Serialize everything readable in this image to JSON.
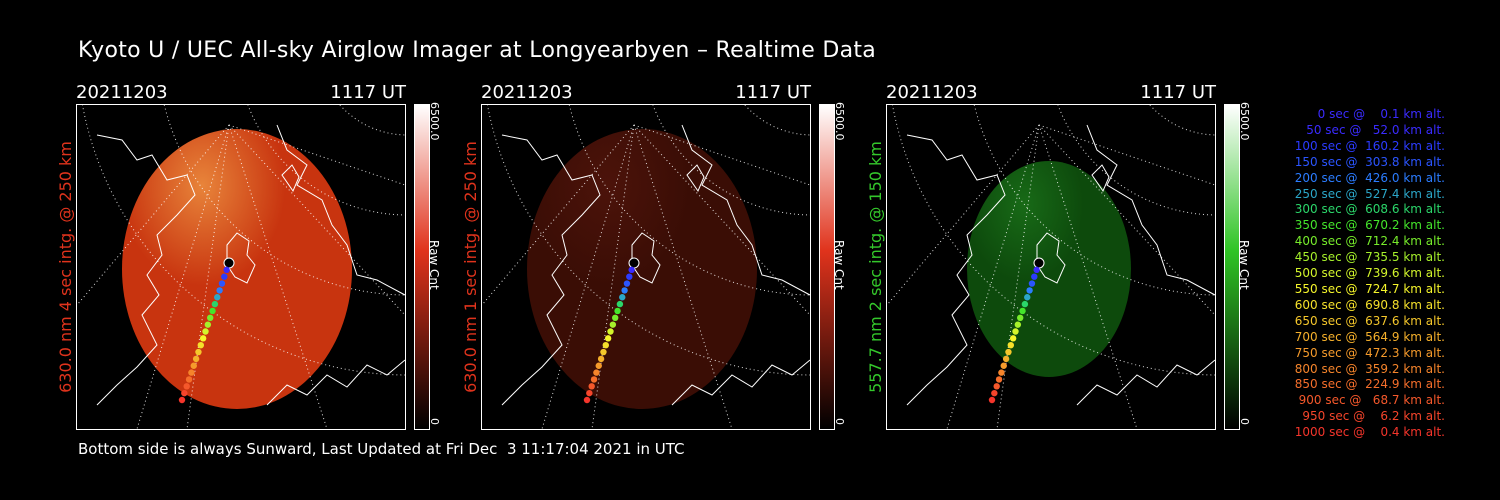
{
  "title": "Kyoto U / UEC All-sky Airglow Imager at Longyearbyen – Realtime Data",
  "footer": "Bottom side is always Sunward, Last Updated at Fri Dec  3 11:17:04 2021 in UTC",
  "panels": [
    {
      "date": "20211203",
      "time": "1117 UT",
      "ylabel": "630.0 nm 4 sec intg. @ 250 km",
      "label_color": "#e0331c",
      "cbar_max": "6500.0",
      "cbar_min": "0",
      "cbar_unit": "Raw Cnt",
      "image_color": "#c8340f",
      "brightness": "bright"
    },
    {
      "date": "20211203",
      "time": "1117 UT",
      "ylabel": "630.0 nm 1 sec intg. @ 250 km",
      "label_color": "#e0331c",
      "cbar_max": "6500.0",
      "cbar_min": "0",
      "cbar_unit": "Raw Cnt",
      "image_color": "#3a0d05",
      "brightness": "dim"
    },
    {
      "date": "20211203",
      "time": "1117 UT",
      "ylabel": "557.7 nm 2 sec intg. @ 150 km",
      "label_color": "#34c82b",
      "cbar_max": "6500.0",
      "cbar_min": "0",
      "cbar_unit": "Raw Cnt",
      "image_color": "#0d4a0c",
      "brightness": "dim"
    }
  ],
  "legend": [
    {
      "text": "   0 sec @    0.1 km alt.",
      "color": "#3a2bff"
    },
    {
      "text": "  50 sec @   52.0 km alt.",
      "color": "#3a2bff"
    },
    {
      "text": " 100 sec @  160.2 km alt.",
      "color": "#2b3bff"
    },
    {
      "text": " 150 sec @  303.8 km alt.",
      "color": "#2b55ff"
    },
    {
      "text": " 200 sec @  426.0 km alt.",
      "color": "#2b7cff"
    },
    {
      "text": " 250 sec @  527.4 km alt.",
      "color": "#2ba6c8"
    },
    {
      "text": " 300 sec @  608.6 km alt.",
      "color": "#2bd66a"
    },
    {
      "text": " 350 sec @  670.2 km alt.",
      "color": "#44e52b"
    },
    {
      "text": " 400 sec @  712.4 km alt.",
      "color": "#77ec2b"
    },
    {
      "text": " 450 sec @  735.5 km alt.",
      "color": "#a6f02b"
    },
    {
      "text": " 500 sec @  739.6 km alt.",
      "color": "#d3f52b"
    },
    {
      "text": " 550 sec @  724.7 km alt.",
      "color": "#f5f52b"
    },
    {
      "text": " 600 sec @  690.8 km alt.",
      "color": "#f5e02b"
    },
    {
      "text": " 650 sec @  637.6 km alt.",
      "color": "#f5c72b"
    },
    {
      "text": " 700 sec @  564.9 km alt.",
      "color": "#f5b02b"
    },
    {
      "text": " 750 sec @  472.3 km alt.",
      "color": "#f59a2b"
    },
    {
      "text": " 800 sec @  359.2 km alt.",
      "color": "#f5842b"
    },
    {
      "text": " 850 sec @  224.9 km alt.",
      "color": "#f56e2b"
    },
    {
      "text": " 900 sec @   68.7 km alt.",
      "color": "#f5582b"
    },
    {
      "text": " 950 sec @    6.2 km alt.",
      "color": "#f5452b"
    },
    {
      "text": "1000 sec @    0.4 km alt.",
      "color": "#f5352b"
    }
  ]
}
